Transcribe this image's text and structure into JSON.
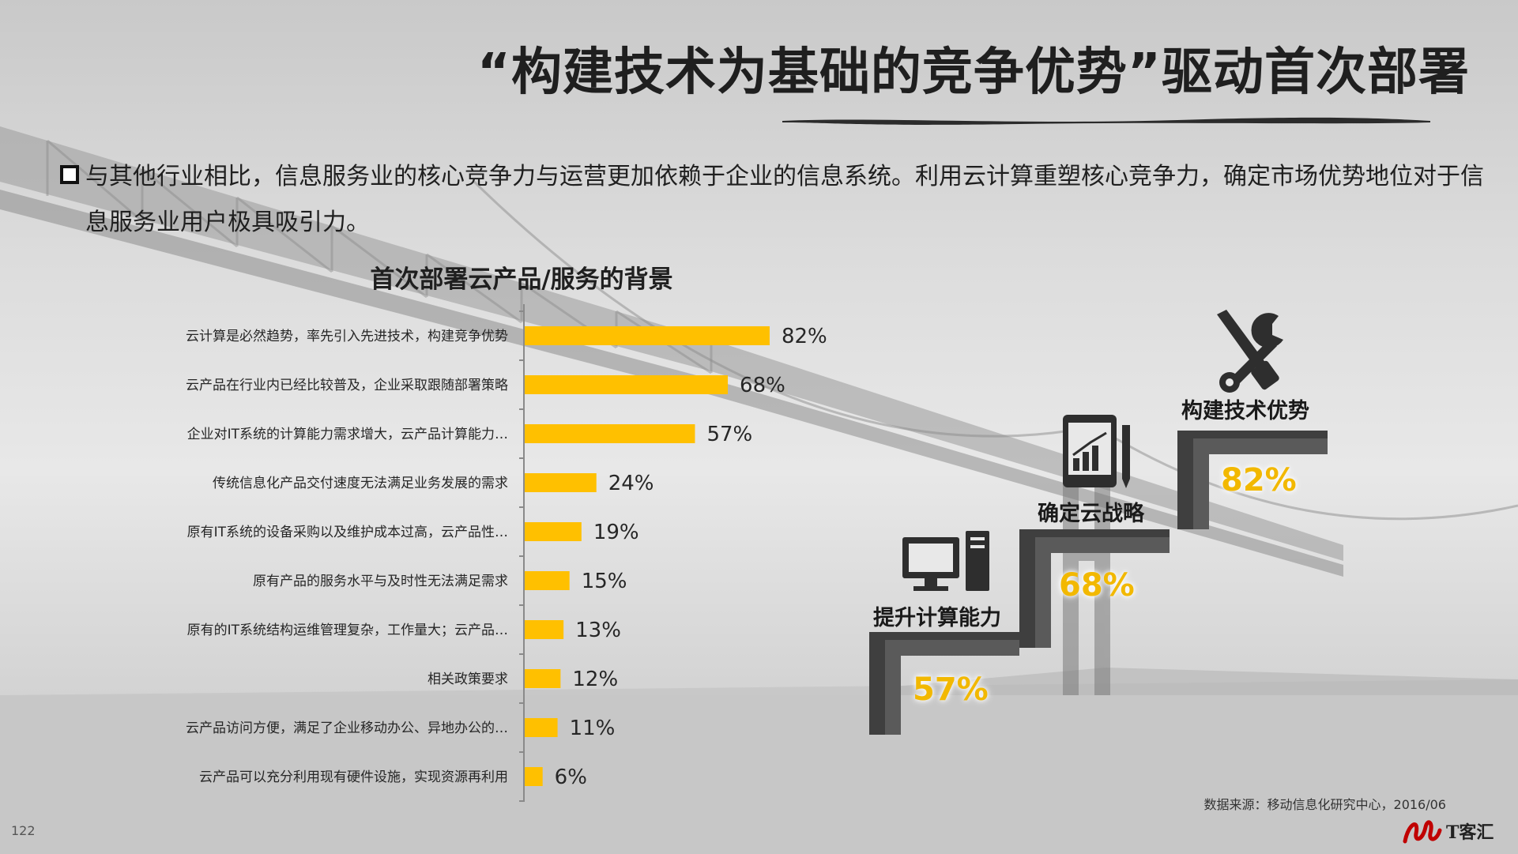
{
  "title": "“构建技术为基础的竞争优势”驱动首次部署",
  "intro": "与其他行业相比，信息服务业的核心竞争力与运营更加依赖于企业的信息系统。利用云计算重塑核心竞争力，确定市场优势地位对于信息服务业用户极具吸引力。",
  "chart_data": {
    "type": "bar",
    "orientation": "horizontal",
    "title": "首次部署云产品/服务的背景",
    "categories": [
      "云计算是必然趋势，率先引入先进技术，构建竞争优势",
      "云产品在行业内已经比较普及，企业采取跟随部署策略",
      "企业对IT系统的计算能力需求增大，云产品计算能力…",
      "传统信息化产品交付速度无法满足业务发展的需求",
      "原有IT系统的设备采购以及维护成本过高，云产品性…",
      "原有产品的服务水平与及时性无法满足需求",
      "原有的IT系统结构运维管理复杂，工作量大；云产品…",
      "相关政策要求",
      "云产品访问方便，满足了企业移动办公、异地办公的…",
      "云产品可以充分利用现有硬件设施，实现资源再利用"
    ],
    "values": [
      82,
      68,
      57,
      24,
      19,
      15,
      13,
      12,
      11,
      6
    ],
    "value_labels": [
      "82%",
      "68%",
      "57%",
      "24%",
      "19%",
      "15%",
      "13%",
      "12%",
      "11%",
      "6%"
    ],
    "unit": "%",
    "xlim": [
      0,
      100
    ],
    "grid": false,
    "bar_color": "#ffc000"
  },
  "steps": [
    {
      "label": "提升计算能力",
      "value": "57%",
      "icon": "computer-icon"
    },
    {
      "label": "确定云战略",
      "value": "68%",
      "icon": "tablet-chart-icon"
    },
    {
      "label": "构建技术优势",
      "value": "82%",
      "icon": "wrench-screwdriver-icon"
    }
  ],
  "source": "数据来源：移动信息化研究中心，2016/06",
  "page_number": "122",
  "logo_text": "T客汇",
  "colors": {
    "accent": "#ffc000",
    "dark": "#3f3f3f",
    "highlight": "#f2b800"
  }
}
